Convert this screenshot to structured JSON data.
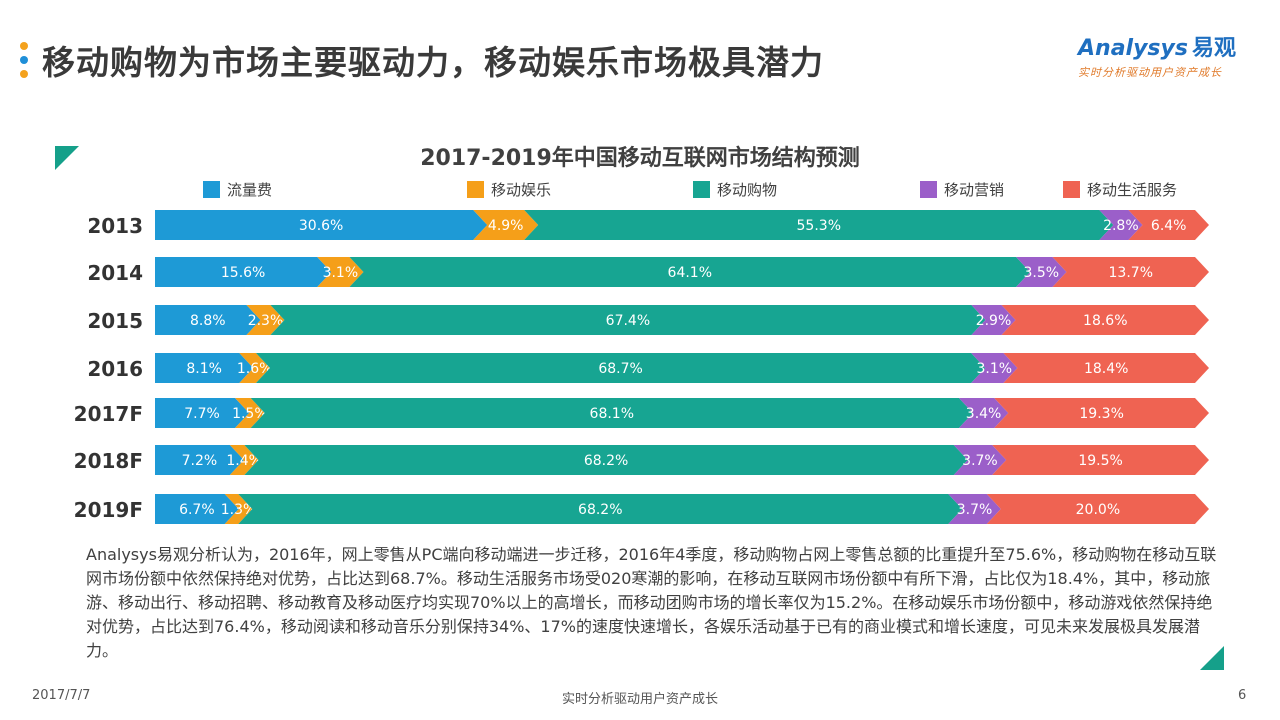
{
  "header": {
    "title": "移动购物为市场主要驱动力，移动娱乐市场极具潜力",
    "dot_colors": [
      "#f4a21d",
      "#1f8fd8",
      "#f4a21d"
    ]
  },
  "logo": {
    "brand": "nalysys",
    "brand_initial": "A",
    "brand_cn": "易观",
    "slogan": "实时分析驱动用户资产成长"
  },
  "chart_data": {
    "type": "bar",
    "orientation": "horizontal",
    "stacked": true,
    "normalized": true,
    "title": "2017-2019年中国移动互联网市场结构预测",
    "categories": [
      "2013",
      "2014",
      "2015",
      "2016",
      "2017F",
      "2018F",
      "2019F"
    ],
    "legend_position": "top",
    "series": [
      {
        "name": "流量费",
        "color": "#1e9ad6",
        "values": [
          30.6,
          15.6,
          8.8,
          8.1,
          7.7,
          7.2,
          6.7
        ],
        "labels": [
          "30.6%",
          "15.6%",
          "8.8%",
          "8.1%",
          "7.7%",
          "7.2%",
          "6.7%"
        ]
      },
      {
        "name": "移动娱乐",
        "color": "#f59f19",
        "values": [
          4.9,
          3.1,
          2.3,
          1.6,
          1.5,
          1.4,
          1.3
        ],
        "labels": [
          "4.9%",
          "3.1%",
          "2.3%",
          "1.6%",
          "1.5%",
          "1.4%",
          "1.3%"
        ]
      },
      {
        "name": "移动购物",
        "color": "#17a592",
        "values": [
          55.3,
          64.1,
          67.4,
          68.7,
          68.1,
          68.2,
          68.2
        ],
        "labels": [
          "55.3%",
          "64.1%",
          "67.4%",
          "68.7%",
          "68.1%",
          "68.2%",
          "68.2%"
        ]
      },
      {
        "name": "移动营销",
        "color": "#9b5fc9",
        "values": [
          2.8,
          3.5,
          2.9,
          3.1,
          3.4,
          3.7,
          3.7
        ],
        "labels": [
          "2.8%",
          "3.5%",
          "2.9%",
          "3.1%",
          "3.4%",
          "3.7%",
          "3.7%"
        ]
      },
      {
        "name": "移动生活服务",
        "color": "#ef6352",
        "values": [
          6.4,
          13.7,
          18.6,
          18.4,
          19.3,
          19.5,
          20.0
        ],
        "labels": [
          "6.4%",
          "13.7%",
          "18.6%",
          "18.4%",
          "19.3%",
          "19.5%",
          "20.0%"
        ]
      }
    ]
  },
  "summary": "Analysys易观分析认为，2016年，网上零售从PC端向移动端进一步迁移，2016年4季度，移动购物占网上零售总额的比重提升至75.6%，移动购物在移动互联网市场份额中依然保持绝对优势，占比达到68.7%。移动生活服务市场受020寒潮的影响，在移动互联网市场份额中有所下滑，占比仅为18.4%，其中，移动旅游、移动出行、移动招聘、移动教育及移动医疗均实现70%以上的高增长，而移动团购市场的增长率仅为15.2%。在移动娱乐市场份额中，移动游戏依然保持绝对优势，占比达到76.4%，移动阅读和移动音乐分别保持34%、17%的速度快速增长，各娱乐活动基于已有的商业模式和增长速度，可见未来发展极具发展潜力。",
  "footer": {
    "date": "2017/7/7",
    "slogan": "实时分析驱动用户资产成长",
    "page": "6"
  }
}
